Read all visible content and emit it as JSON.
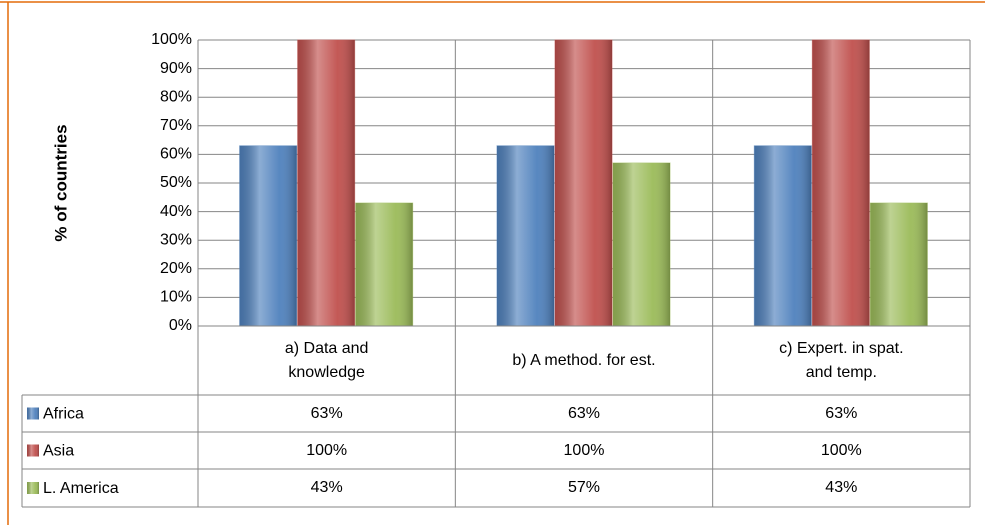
{
  "chart_data": {
    "type": "bar",
    "y_label": "% of countries",
    "categories": [
      "a) Data and knowledge",
      "b) A method. for est.",
      "c) Expert. in spat. and temp."
    ],
    "series": [
      {
        "name": "Africa",
        "color": "#4f81bd",
        "values": [
          63,
          63,
          63
        ],
        "value_labels": [
          "63%",
          "63%",
          "63%"
        ]
      },
      {
        "name": "Asia",
        "color": "#c0504d",
        "values": [
          100,
          100,
          100
        ],
        "value_labels": [
          "100%",
          "100%",
          "100%"
        ]
      },
      {
        "name": "L. America",
        "color": "#9bbb59",
        "values": [
          43,
          57,
          43
        ],
        "value_labels": [
          "43%",
          "57%",
          "43%"
        ]
      }
    ],
    "ylim": [
      0,
      100
    ],
    "yticks": [
      {
        "value": 0,
        "label": "0%"
      },
      {
        "value": 10,
        "label": "10%"
      },
      {
        "value": 20,
        "label": "20%"
      },
      {
        "value": 30,
        "label": "30%"
      },
      {
        "value": 40,
        "label": "40%"
      },
      {
        "value": 50,
        "label": "50%"
      },
      {
        "value": 60,
        "label": "60%"
      },
      {
        "value": 70,
        "label": "70%"
      },
      {
        "value": 80,
        "label": "80%"
      },
      {
        "value": 90,
        "label": "90%"
      },
      {
        "value": 100,
        "label": "100%"
      }
    ],
    "grid": true
  }
}
